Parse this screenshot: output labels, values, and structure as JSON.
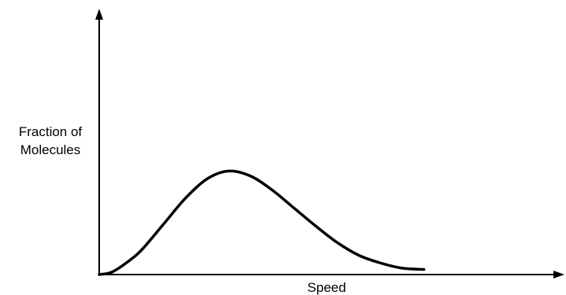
{
  "chart_data": {
    "type": "line",
    "title": "",
    "xlabel": "Speed",
    "ylabel_lines": [
      "Fraction of",
      "Molecules"
    ],
    "grid": false,
    "axis_ticks": false,
    "xlim": [
      0,
      10
    ],
    "ylim": [
      0,
      10
    ],
    "series": [
      {
        "x": [
          0,
          0.3,
          0.7,
          1.0,
          1.5,
          2.0,
          2.5,
          3.0,
          3.5,
          4.0,
          4.5,
          5.0,
          5.5,
          6.0,
          6.5,
          7.0,
          7.5
        ],
        "y": [
          0,
          0.1,
          0.55,
          1.0,
          2.0,
          3.0,
          3.75,
          4.05,
          3.85,
          3.3,
          2.6,
          1.9,
          1.25,
          0.75,
          0.45,
          0.25,
          0.2
        ]
      }
    ]
  },
  "colors": {
    "axis": "#000000",
    "curve": "#000000",
    "background": "#ffffff"
  }
}
